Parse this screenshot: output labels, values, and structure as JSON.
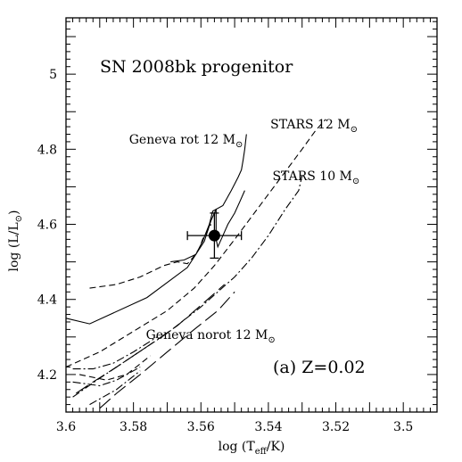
{
  "chart_data": {
    "type": "line",
    "title": "SN 2008bk progenitor",
    "panel_label": "(a) Z=0.02",
    "xlabel": {
      "prefix": "log (T",
      "sub": "eff",
      "suffix": "/K)"
    },
    "ylabel": {
      "prefix": "log (L/L",
      "sun": "⊙",
      "suffix": ")"
    },
    "xlim": [
      3.6,
      3.49
    ],
    "ylim": [
      4.1,
      5.15
    ],
    "x_reversed": true,
    "x_ticks": [
      {
        "value": 3.6,
        "label": "3.6"
      },
      {
        "value": 3.58,
        "label": "3.58"
      },
      {
        "value": 3.56,
        "label": "3.56"
      },
      {
        "value": 3.54,
        "label": "3.54"
      },
      {
        "value": 3.52,
        "label": "3.52"
      },
      {
        "value": 3.5,
        "label": "3.5"
      }
    ],
    "y_ticks": [
      {
        "value": 4.2,
        "label": "4.2"
      },
      {
        "value": 4.4,
        "label": "4.4"
      },
      {
        "value": 4.6,
        "label": "4.6"
      },
      {
        "value": 4.8,
        "label": "4.8"
      },
      {
        "value": 5.0,
        "label": "5"
      }
    ],
    "observation": {
      "x": 3.556,
      "y": 4.57,
      "xerr": 0.008,
      "yerr": 0.06
    },
    "track_labels": [
      {
        "text": "Geneva rot 12 M",
        "sun": "⊙",
        "x": 3.5813,
        "y": 4.815
      },
      {
        "text": "STARS 12 M",
        "sun": "⊙",
        "x": 3.5394,
        "y": 4.855
      },
      {
        "text": "STARS 10 M",
        "sun": "⊙",
        "x": 3.5388,
        "y": 4.718
      },
      {
        "text": "Geneva norot 12 M",
        "sun": "⊙",
        "x": 3.5763,
        "y": 4.295
      }
    ],
    "series": [
      {
        "style": "solid",
        "points": [
          [
            3.6,
            4.35
          ],
          [
            3.593,
            4.335
          ],
          [
            3.576,
            4.405
          ],
          [
            3.564,
            4.485
          ],
          [
            3.559,
            4.555
          ],
          [
            3.557,
            4.61
          ],
          [
            3.5555,
            4.64
          ],
          [
            3.5535,
            4.65
          ],
          [
            3.551,
            4.69
          ],
          [
            3.549,
            4.725
          ],
          [
            3.548,
            4.745
          ],
          [
            3.5475,
            4.77
          ],
          [
            3.547,
            4.8
          ],
          [
            3.5465,
            4.84
          ]
        ]
      },
      {
        "style": "solid",
        "points": [
          [
            3.569,
            4.5
          ],
          [
            3.565,
            4.505
          ],
          [
            3.5615,
            4.52
          ],
          [
            3.5595,
            4.555
          ],
          [
            3.5575,
            4.6
          ],
          [
            3.5565,
            4.635
          ],
          [
            3.5555,
            4.64
          ],
          [
            3.5555,
            4.56
          ],
          [
            3.555,
            4.54
          ],
          [
            3.5535,
            4.57
          ],
          [
            3.552,
            4.6
          ],
          [
            3.55,
            4.63
          ],
          [
            3.5485,
            4.66
          ],
          [
            3.547,
            4.69
          ]
        ]
      },
      {
        "style": "dashed",
        "points": [
          [
            3.6,
            4.22
          ],
          [
            3.59,
            4.26
          ],
          [
            3.58,
            4.315
          ],
          [
            3.57,
            4.37
          ],
          [
            3.562,
            4.43
          ],
          [
            3.556,
            4.49
          ],
          [
            3.55,
            4.56
          ],
          [
            3.545,
            4.62
          ],
          [
            3.54,
            4.68
          ],
          [
            3.535,
            4.74
          ],
          [
            3.53,
            4.8
          ],
          [
            3.526,
            4.85
          ],
          [
            3.523,
            4.88
          ]
        ]
      },
      {
        "style": "dashed",
        "points": [
          [
            3.593,
            4.43
          ],
          [
            3.585,
            4.44
          ],
          [
            3.578,
            4.46
          ],
          [
            3.571,
            4.49
          ],
          [
            3.567,
            4.5
          ],
          [
            3.564,
            4.495
          ],
          [
            3.5625,
            4.51
          ],
          [
            3.5605,
            4.535
          ],
          [
            3.5595,
            4.56
          ],
          [
            3.557,
            4.6
          ]
        ]
      },
      {
        "style": "dashdot",
        "points": [
          [
            3.598,
            4.14
          ],
          [
            3.59,
            4.19
          ],
          [
            3.58,
            4.25
          ],
          [
            3.57,
            4.31
          ],
          [
            3.56,
            4.38
          ],
          [
            3.55,
            4.46
          ],
          [
            3.545,
            4.51
          ],
          [
            3.54,
            4.57
          ],
          [
            3.535,
            4.64
          ],
          [
            3.531,
            4.69
          ],
          [
            3.53,
            4.73
          ]
        ]
      },
      {
        "style": "longdash",
        "points": [
          [
            3.597,
            4.15
          ],
          [
            3.592,
            4.18
          ],
          [
            3.585,
            4.22
          ],
          [
            3.575,
            4.28
          ],
          [
            3.567,
            4.33
          ],
          [
            3.558,
            4.4
          ],
          [
            3.553,
            4.44
          ]
        ]
      },
      {
        "style": "longdash",
        "points": [
          [
            3.59,
            4.11
          ],
          [
            3.585,
            4.15
          ],
          [
            3.578,
            4.2
          ],
          [
            3.57,
            4.26
          ],
          [
            3.562,
            4.32
          ],
          [
            3.555,
            4.37
          ],
          [
            3.55,
            4.42
          ]
        ]
      },
      {
        "style": "dashdot",
        "points": [
          [
            3.598,
            4.215
          ],
          [
            3.592,
            4.215
          ],
          [
            3.586,
            4.23
          ],
          [
            3.58,
            4.26
          ],
          [
            3.573,
            4.3
          ]
        ]
      },
      {
        "style": "dashdot",
        "points": [
          [
            3.598,
            4.18
          ],
          [
            3.59,
            4.17
          ],
          [
            3.585,
            4.185
          ],
          [
            3.578,
            4.22
          ]
        ]
      },
      {
        "style": "dashed",
        "points": [
          [
            3.596,
            4.2
          ],
          [
            3.588,
            4.185
          ],
          [
            3.582,
            4.2
          ],
          [
            3.575,
            4.25
          ]
        ]
      },
      {
        "style": "dashdot",
        "points": [
          [
            3.593,
            4.12
          ],
          [
            3.585,
            4.16
          ],
          [
            3.578,
            4.21
          ]
        ]
      }
    ]
  }
}
